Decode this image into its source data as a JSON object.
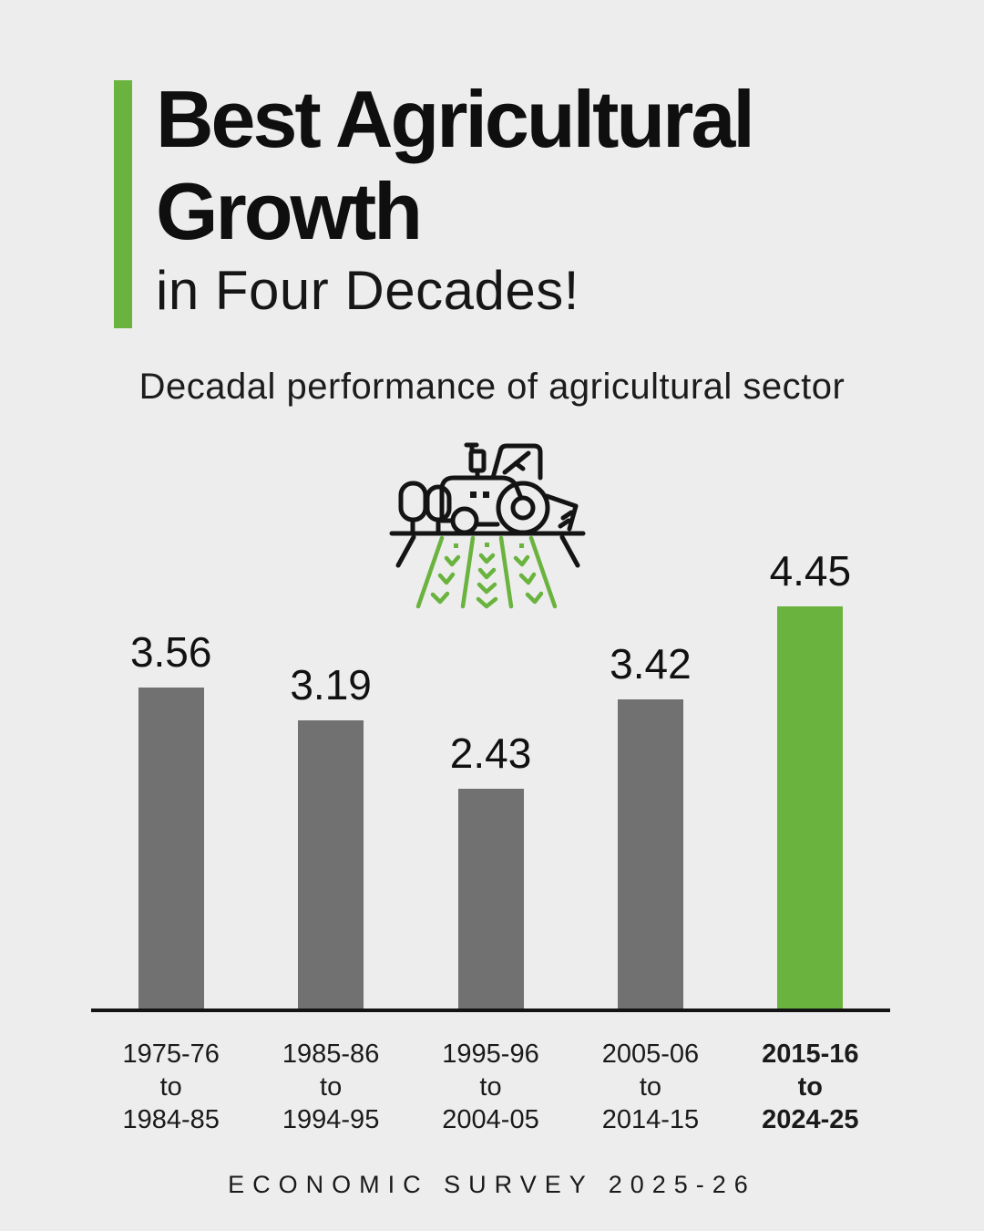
{
  "header": {
    "title_lines": [
      "Best Agricultural",
      "Growth"
    ],
    "subtitle": "in Four Decades!"
  },
  "tagline": "Decadal performance of agricultural sector",
  "icon": "tractor-plowing-field-icon",
  "chart_data": {
    "type": "bar",
    "title": "Decadal performance of agricultural sector",
    "categories": [
      [
        "1975-76",
        "to",
        "1984-85"
      ],
      [
        "1985-86",
        "to",
        "1994-95"
      ],
      [
        "1995-96",
        "to",
        "2004-05"
      ],
      [
        "2005-06",
        "to",
        "2014-15"
      ],
      [
        "2015-16",
        "to",
        "2024-25"
      ]
    ],
    "values": [
      3.56,
      3.19,
      2.43,
      3.42,
      4.45
    ],
    "highlight_index": 4,
    "xlabel": "",
    "ylabel": "",
    "ylim": [
      0,
      4.45
    ],
    "grid": false,
    "legend": false,
    "value_labels": true
  },
  "colors": {
    "accent_green": "#6ab33f",
    "bar_gray": "#717171",
    "axis_black": "#141414",
    "background": "#ededed"
  },
  "footer": {
    "text": "ECONOMIC SURVEY 2025-26"
  }
}
